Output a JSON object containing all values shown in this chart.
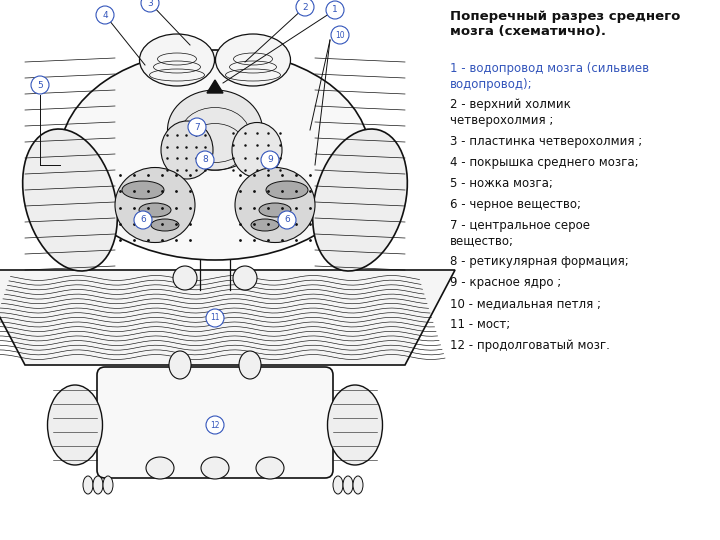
{
  "bg_color": "#ffffff",
  "label_color": "#3355bb",
  "title_text": "Поперечный разрез среднего\nмозга (схематично).",
  "entries": [
    {
      "num": "1",
      "text": "водопровод мозга (сильвиев\nводопровод);",
      "color": "#3355bb"
    },
    {
      "num": "2",
      "text": "верхний холмик\nчетверохолмия ;",
      "color": "#111111"
    },
    {
      "num": "3",
      "text": "пластинка четверохолмия ;",
      "color": "#111111"
    },
    {
      "num": "4",
      "text": "покрышка среднего мозга;",
      "color": "#111111"
    },
    {
      "num": "5",
      "text": "ножка мозга;",
      "color": "#111111"
    },
    {
      "num": "6",
      "text": "черное вещество;",
      "color": "#111111"
    },
    {
      "num": "7",
      "text": "центральное серое\nвещество;",
      "color": "#111111"
    },
    {
      "num": "8",
      "text": "ретикулярная формация;",
      "color": "#111111"
    },
    {
      "num": "9",
      "text": "красное ядро ;",
      "color": "#111111"
    },
    {
      "num": "10",
      "text": "медиальная петля ;",
      "color": "#111111"
    },
    {
      "num": "11",
      "text": "мост;",
      "color": "#111111"
    },
    {
      "num": "12",
      "text": "продолговатый мозг.",
      "color": "#111111"
    }
  ]
}
